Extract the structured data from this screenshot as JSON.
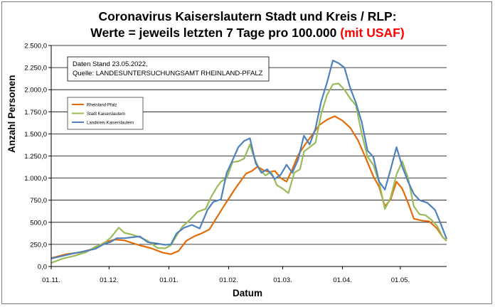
{
  "chart_data": {
    "type": "line",
    "title_line1": "Coronavirus Kaiserslautern Stadt und Kreis / RLP:",
    "title_line2": "Werte = jeweils letzten 7 Tage pro 100.000",
    "title_highlight": "(mit USAF)",
    "title_highlight_color": "#ff0000",
    "xlabel": "Datum",
    "ylabel": "Anzahl Personen",
    "ylim": [
      0,
      2500
    ],
    "yticks": [
      "0,0",
      "250,0",
      "500,0",
      "750,0",
      "1.000,0",
      "1.250,0",
      "1.500,0",
      "1.750,0",
      "2.000,0",
      "2.250,0",
      "2.500,0"
    ],
    "xtick_labels": [
      "01.11.",
      "01.12.",
      "01.01.",
      "01.02.",
      "01.03.",
      "01.04.",
      "01.05."
    ],
    "xtick_days": [
      0,
      30,
      61,
      92,
      120,
      151,
      181
    ],
    "x_range_days": [
      0,
      205
    ],
    "grid": "horizontal",
    "annotation_line1": "Daten Stand 23.05.2022,",
    "annotation_line2": "Quelle: LANDESUNTERSUCHUNGSAMT RHEINLAND-PFALZ",
    "legend_position": "upper-left",
    "series": [
      {
        "name": "Rheinland-Pfalz",
        "color": "#e36c09",
        "points": [
          [
            0,
            95
          ],
          [
            8,
            140
          ],
          [
            15,
            160
          ],
          [
            22,
            200
          ],
          [
            28,
            275
          ],
          [
            33,
            305
          ],
          [
            38,
            295
          ],
          [
            45,
            245
          ],
          [
            52,
            205
          ],
          [
            58,
            155
          ],
          [
            62,
            140
          ],
          [
            66,
            175
          ],
          [
            70,
            290
          ],
          [
            74,
            340
          ],
          [
            78,
            375
          ],
          [
            82,
            420
          ],
          [
            86,
            560
          ],
          [
            90,
            700
          ],
          [
            93,
            800
          ],
          [
            95,
            870
          ],
          [
            98,
            960
          ],
          [
            101,
            1050
          ],
          [
            104,
            1080
          ],
          [
            107,
            1130
          ],
          [
            110,
            1090
          ],
          [
            113,
            1070
          ],
          [
            116,
            1080
          ],
          [
            119,
            1000
          ],
          [
            122,
            960
          ],
          [
            125,
            1100
          ],
          [
            128,
            1260
          ],
          [
            131,
            1360
          ],
          [
            135,
            1480
          ],
          [
            139,
            1600
          ],
          [
            143,
            1660
          ],
          [
            147,
            1700
          ],
          [
            151,
            1650
          ],
          [
            155,
            1570
          ],
          [
            159,
            1430
          ],
          [
            163,
            1230
          ],
          [
            167,
            1020
          ],
          [
            170,
            900
          ],
          [
            173,
            680
          ],
          [
            176,
            760
          ],
          [
            179,
            960
          ],
          [
            182,
            880
          ],
          [
            185,
            720
          ],
          [
            188,
            540
          ],
          [
            192,
            520
          ],
          [
            196,
            510
          ],
          [
            200,
            430
          ],
          [
            203,
            330
          ],
          [
            205,
            290
          ]
        ]
      },
      {
        "name": "Stadt Kaiserslautern",
        "color": "#9bbb59",
        "points": [
          [
            0,
            40
          ],
          [
            6,
            90
          ],
          [
            12,
            120
          ],
          [
            18,
            160
          ],
          [
            23,
            225
          ],
          [
            27,
            255
          ],
          [
            31,
            330
          ],
          [
            35,
            440
          ],
          [
            38,
            380
          ],
          [
            42,
            360
          ],
          [
            46,
            330
          ],
          [
            50,
            290
          ],
          [
            55,
            210
          ],
          [
            59,
            205
          ],
          [
            62,
            240
          ],
          [
            65,
            350
          ],
          [
            68,
            450
          ],
          [
            72,
            530
          ],
          [
            76,
            620
          ],
          [
            80,
            650
          ],
          [
            83,
            790
          ],
          [
            86,
            900
          ],
          [
            88,
            960
          ],
          [
            91,
            1000
          ],
          [
            94,
            1180
          ],
          [
            97,
            1190
          ],
          [
            100,
            1220
          ],
          [
            103,
            1380
          ],
          [
            105,
            1240
          ],
          [
            108,
            1100
          ],
          [
            111,
            1030
          ],
          [
            114,
            1070
          ],
          [
            117,
            920
          ],
          [
            120,
            880
          ],
          [
            123,
            830
          ],
          [
            126,
            1060
          ],
          [
            129,
            1100
          ],
          [
            131,
            1300
          ],
          [
            134,
            1350
          ],
          [
            137,
            1400
          ],
          [
            140,
            1730
          ],
          [
            143,
            1940
          ],
          [
            146,
            2060
          ],
          [
            149,
            2070
          ],
          [
            152,
            2000
          ],
          [
            155,
            1900
          ],
          [
            158,
            1820
          ],
          [
            161,
            1500
          ],
          [
            164,
            1240
          ],
          [
            167,
            1150
          ],
          [
            170,
            950
          ],
          [
            173,
            650
          ],
          [
            176,
            780
          ],
          [
            179,
            1040
          ],
          [
            182,
            1190
          ],
          [
            185,
            1000
          ],
          [
            188,
            680
          ],
          [
            191,
            590
          ],
          [
            194,
            580
          ],
          [
            197,
            530
          ],
          [
            200,
            460
          ],
          [
            203,
            330
          ],
          [
            205,
            290
          ]
        ]
      },
      {
        "name": "Landkreis Kaiserslautern",
        "color": "#4f81bd",
        "points": [
          [
            0,
            90
          ],
          [
            6,
            120
          ],
          [
            12,
            150
          ],
          [
            18,
            175
          ],
          [
            23,
            200
          ],
          [
            27,
            250
          ],
          [
            31,
            280
          ],
          [
            34,
            320
          ],
          [
            38,
            320
          ],
          [
            42,
            330
          ],
          [
            46,
            340
          ],
          [
            50,
            275
          ],
          [
            55,
            260
          ],
          [
            59,
            245
          ],
          [
            62,
            250
          ],
          [
            65,
            375
          ],
          [
            69,
            440
          ],
          [
            73,
            470
          ],
          [
            77,
            430
          ],
          [
            81,
            640
          ],
          [
            84,
            730
          ],
          [
            88,
            760
          ],
          [
            91,
            1060
          ],
          [
            94,
            1200
          ],
          [
            97,
            1350
          ],
          [
            100,
            1420
          ],
          [
            103,
            1450
          ],
          [
            106,
            1170
          ],
          [
            109,
            1060
          ],
          [
            112,
            1100
          ],
          [
            116,
            990
          ],
          [
            119,
            1040
          ],
          [
            122,
            1150
          ],
          [
            125,
            1060
          ],
          [
            128,
            1210
          ],
          [
            131,
            1480
          ],
          [
            134,
            1380
          ],
          [
            137,
            1560
          ],
          [
            140,
            1870
          ],
          [
            143,
            2080
          ],
          [
            146,
            2330
          ],
          [
            149,
            2300
          ],
          [
            152,
            2250
          ],
          [
            155,
            2020
          ],
          [
            158,
            1850
          ],
          [
            161,
            1630
          ],
          [
            164,
            1310
          ],
          [
            167,
            1240
          ],
          [
            170,
            960
          ],
          [
            173,
            870
          ],
          [
            176,
            1100
          ],
          [
            179,
            1350
          ],
          [
            182,
            1130
          ],
          [
            185,
            960
          ],
          [
            188,
            820
          ],
          [
            191,
            750
          ],
          [
            195,
            720
          ],
          [
            199,
            640
          ],
          [
            202,
            480
          ],
          [
            205,
            310
          ]
        ]
      }
    ]
  }
}
